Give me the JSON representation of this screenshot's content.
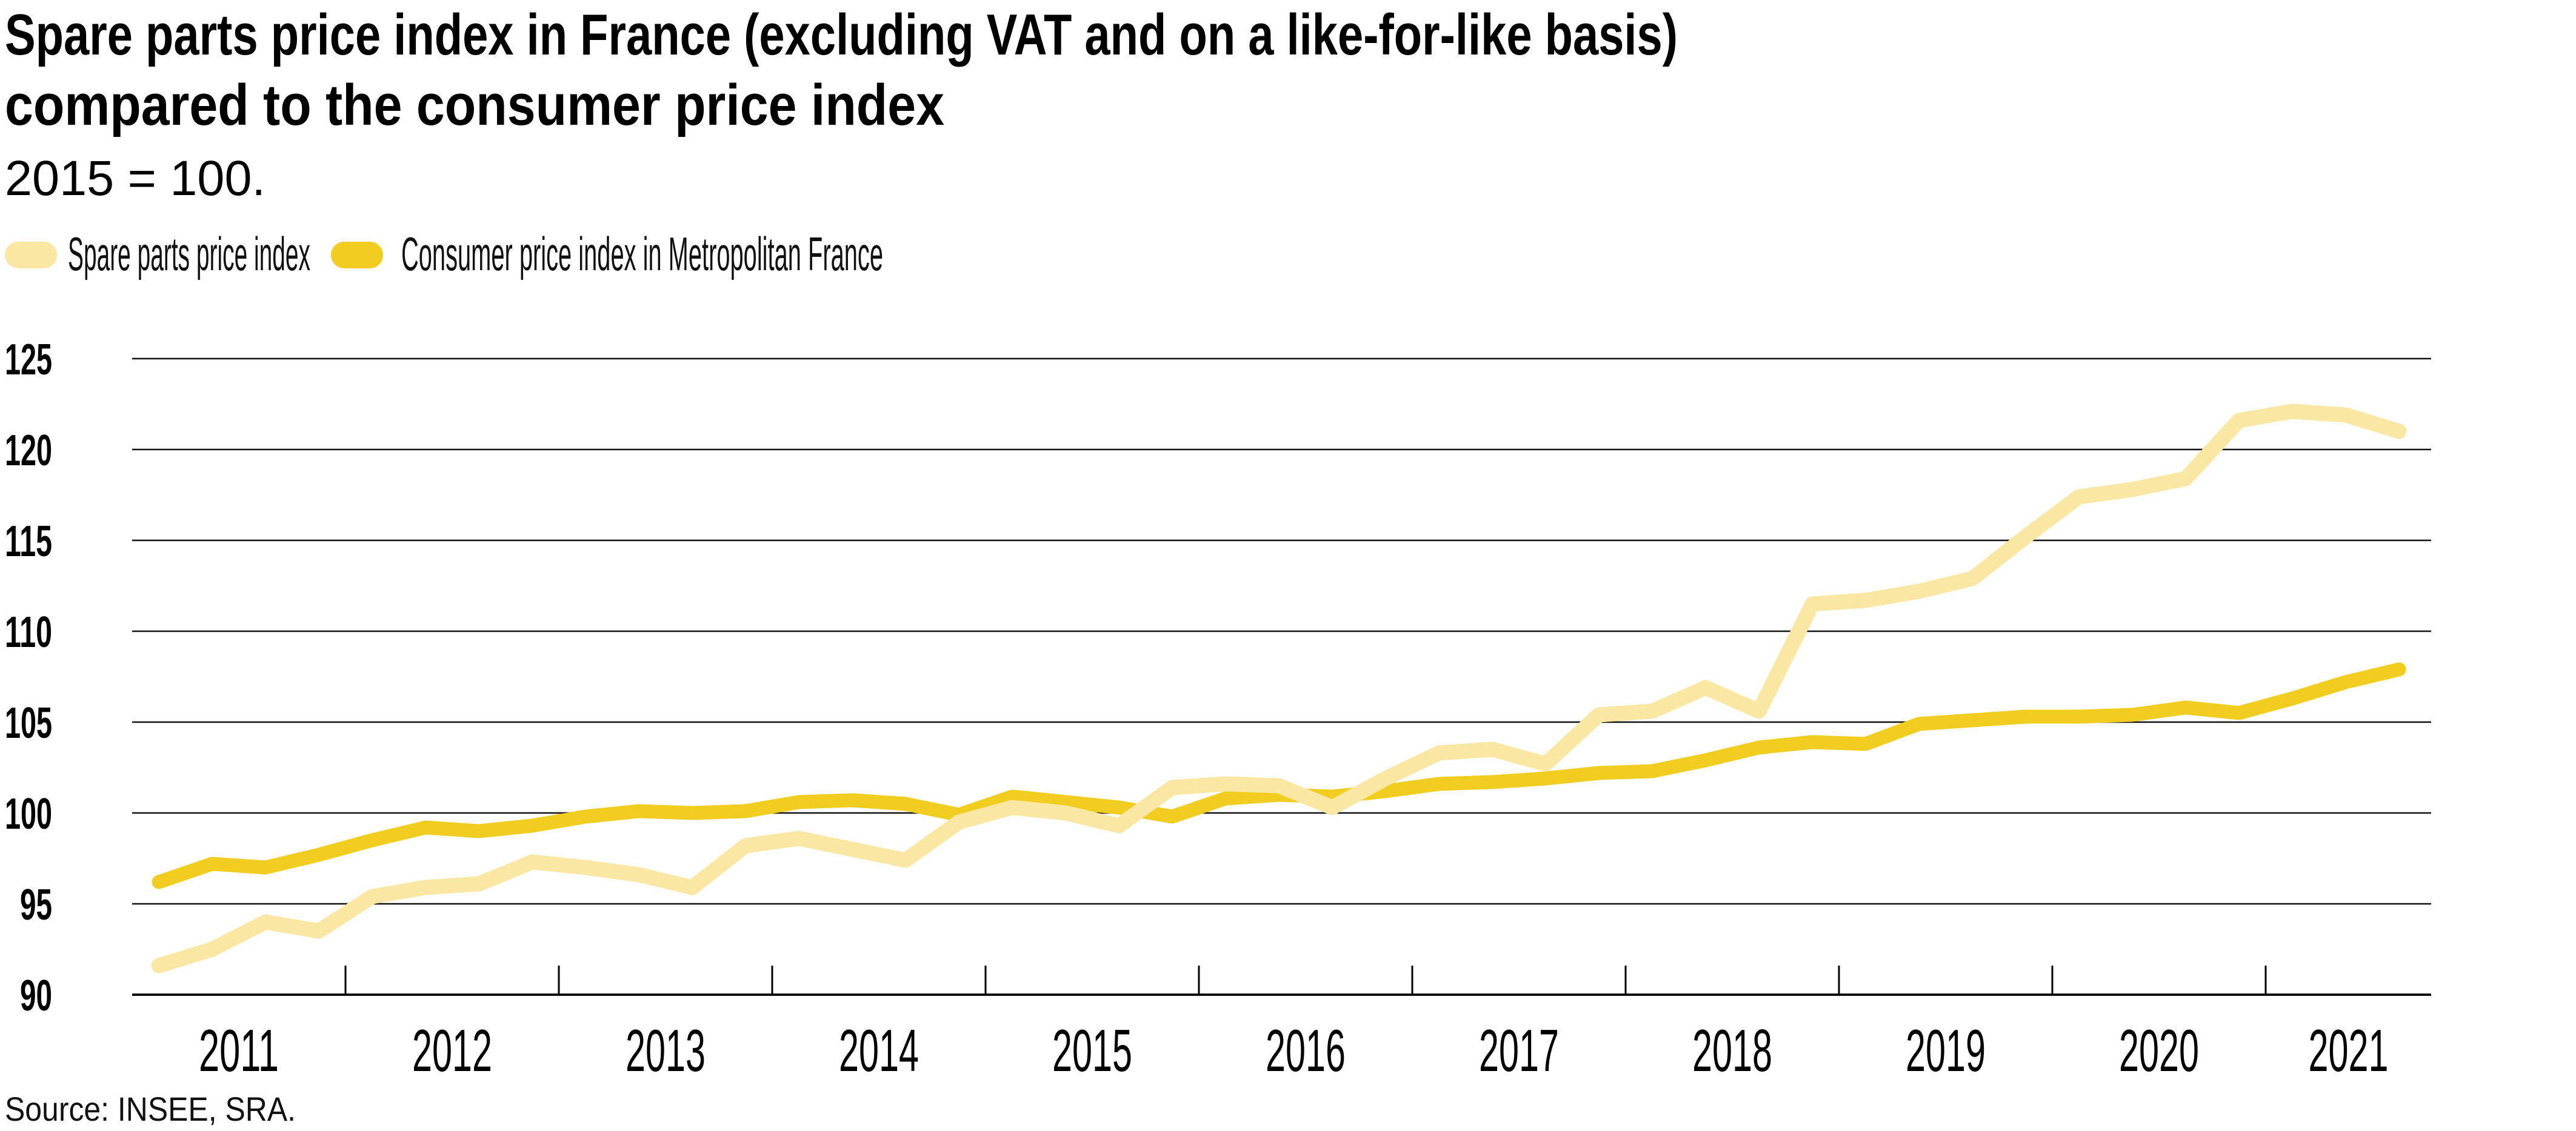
{
  "title": {
    "line1": "Spare parts price index in France (excluding VAT and on a like-for-like basis)",
    "line2": "compared to the consumer price index"
  },
  "subtitle": "2015 = 100.",
  "legend": {
    "items": [
      {
        "label": "Spare parts price index",
        "color": "#FAE7A3"
      },
      {
        "label": "Consumer price index in Metropolitan France",
        "color": "#F0CD1E"
      }
    ]
  },
  "source": "Source: INSEE, SRA.",
  "colors": {
    "spare_parts_line": "#FAE7A3",
    "cpi_line": "#F0CD1E",
    "grid": "#111111",
    "axis": "#000000",
    "text": "#000000"
  },
  "chart_data": {
    "type": "line",
    "title": "Spare parts price index in France (excluding VAT and on a like-for-like basis) compared to the consumer price index",
    "subtitle": "2015 = 100.",
    "xlabel": "",
    "ylabel": "",
    "ylim": [
      90,
      125
    ],
    "yticks": [
      90,
      95,
      100,
      105,
      110,
      115,
      120,
      125
    ],
    "x_range_years": [
      2011.0,
      2021.77
    ],
    "x_boundary_tick_years": [
      2012,
      2013,
      2014,
      2015,
      2016,
      2017,
      2018,
      2019,
      2020,
      2021
    ],
    "x_interval_labels": [
      "2011",
      "2012",
      "2013",
      "2014",
      "2015",
      "2016",
      "2017",
      "2018",
      "2019",
      "2020",
      "2021"
    ],
    "grid": true,
    "legend_position": "top-left",
    "x_quarters": [
      "2011Q1",
      "2011Q2",
      "2011Q3",
      "2011Q4",
      "2012Q1",
      "2012Q2",
      "2012Q3",
      "2012Q4",
      "2013Q1",
      "2013Q2",
      "2013Q3",
      "2013Q4",
      "2014Q1",
      "2014Q2",
      "2014Q3",
      "2014Q4",
      "2015Q1",
      "2015Q2",
      "2015Q3",
      "2015Q4",
      "2016Q1",
      "2016Q2",
      "2016Q3",
      "2016Q4",
      "2017Q1",
      "2017Q2",
      "2017Q3",
      "2017Q4",
      "2018Q1",
      "2018Q2",
      "2018Q3",
      "2018Q4",
      "2019Q1",
      "2019Q2",
      "2019Q3",
      "2019Q4",
      "2020Q1",
      "2020Q2",
      "2020Q3",
      "2020Q4",
      "2021Q1",
      "2021Q2",
      "2021Q3"
    ],
    "series": [
      {
        "name": "Spare parts price index",
        "color": "#FAE7A3",
        "values": [
          91.6,
          92.5,
          94.0,
          93.5,
          95.4,
          95.9,
          96.1,
          97.3,
          97.0,
          96.6,
          95.9,
          98.2,
          98.6,
          98.0,
          97.4,
          99.5,
          100.3,
          100.0,
          99.3,
          101.4,
          101.6,
          101.5,
          100.3,
          101.9,
          103.3,
          103.5,
          102.7,
          105.4,
          105.6,
          106.9,
          105.6,
          111.5,
          111.7,
          112.2,
          112.9,
          115.2,
          117.4,
          117.8,
          118.4,
          121.6,
          122.1,
          121.9,
          121.0
        ]
      },
      {
        "name": "Consumer price index in Metropolitan France",
        "color": "#F0CD1E",
        "values": [
          96.2,
          97.2,
          97.0,
          97.7,
          98.5,
          99.2,
          99.0,
          99.3,
          99.8,
          100.1,
          100.0,
          100.1,
          100.6,
          100.7,
          100.5,
          99.9,
          100.9,
          100.6,
          100.3,
          99.8,
          100.8,
          101.0,
          100.9,
          101.2,
          101.6,
          101.7,
          101.9,
          102.2,
          102.3,
          102.9,
          103.6,
          103.9,
          103.8,
          104.9,
          105.1,
          105.3,
          105.3,
          105.4,
          105.8,
          105.5,
          106.3,
          107.2,
          107.9
        ]
      }
    ]
  }
}
